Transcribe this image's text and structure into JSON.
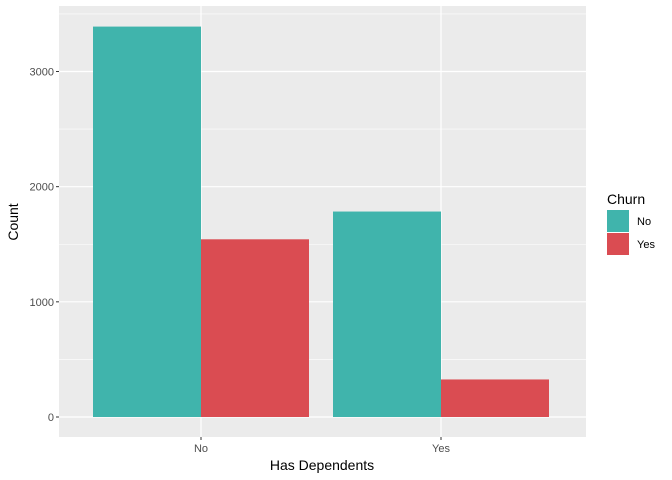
{
  "chart_data": {
    "type": "bar",
    "categories": [
      "No",
      "Yes"
    ],
    "series": [
      {
        "name": "No",
        "values": [
          3390,
          1784
        ],
        "color": "#40B4AC"
      },
      {
        "name": "Yes",
        "values": [
          1543,
          326
        ],
        "color": "#DA4C52"
      }
    ],
    "xlabel": "Has Dependents",
    "ylabel": "Count",
    "ylim": [
      0,
      3500
    ],
    "yticks": [
      0,
      1000,
      2000,
      3000
    ],
    "grid": true,
    "legend": {
      "title": "Churn",
      "position": "right"
    },
    "panel_background": "#EBEBEB"
  }
}
